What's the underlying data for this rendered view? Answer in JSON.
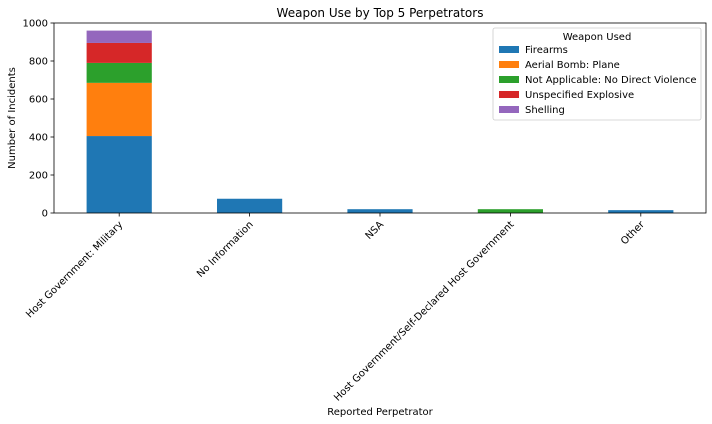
{
  "chart_data": {
    "type": "bar",
    "stacked": true,
    "title": "Weapon Use by Top 5 Perpetrators",
    "xlabel": "Reported Perpetrator",
    "ylabel": "Number of Incidents",
    "ylim": [
      0,
      1000
    ],
    "yticks": [
      0,
      200,
      400,
      600,
      800,
      1000
    ],
    "categories": [
      "Host Government: Military",
      "No Information",
      "NSA",
      "Host Government/Self-Declared Host Government",
      "Other"
    ],
    "legend": {
      "title": "Weapon Used",
      "placement": "upper-right"
    },
    "series": [
      {
        "name": "Firearms",
        "color": "#1f77b4",
        "values": [
          405,
          75,
          20,
          0,
          15
        ]
      },
      {
        "name": "Aerial Bomb: Plane",
        "color": "#ff7f0e",
        "values": [
          280,
          0,
          0,
          0,
          0
        ]
      },
      {
        "name": "Not Applicable: No Direct Violence",
        "color": "#2ca02c",
        "values": [
          105,
          0,
          0,
          20,
          0
        ]
      },
      {
        "name": "Unspecified Explosive",
        "color": "#d62728",
        "values": [
          105,
          0,
          0,
          0,
          0
        ]
      },
      {
        "name": "Shelling",
        "color": "#9467bd",
        "values": [
          65,
          0,
          0,
          0,
          0
        ]
      }
    ]
  }
}
